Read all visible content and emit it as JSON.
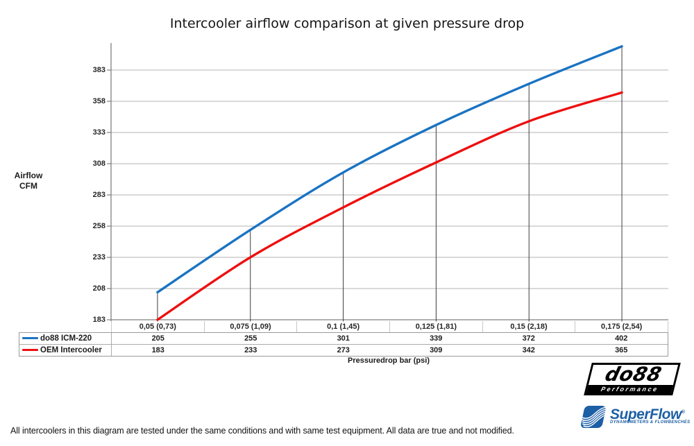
{
  "title": "Intercooler airflow comparison at given pressure drop",
  "y_axis_title": {
    "line1": "Airflow",
    "line2": "CFM"
  },
  "x_axis_title": "Pressuredrop bar (psi)",
  "chart_data": {
    "type": "line",
    "title": "Intercooler airflow comparison at given pressure drop",
    "categories": [
      "0,05 (0,73)",
      "0,075 (1,09)",
      "0,1 (1,45)",
      "0,125 (1,81)",
      "0,15 (2,18)",
      "0,175 (2,54)"
    ],
    "series": [
      {
        "name": "do88 ICM-220",
        "color": "#1a73c2",
        "values": [
          205,
          255,
          301,
          339,
          372,
          402
        ]
      },
      {
        "name": "OEM Intercooler",
        "color": "#ee0f0f",
        "values": [
          183,
          233,
          273,
          309,
          342,
          365
        ]
      }
    ],
    "xlabel": "Pressuredrop bar (psi)",
    "ylabel": "Airflow CFM",
    "yticks": [
      183,
      208,
      233,
      258,
      283,
      308,
      333,
      358,
      383
    ],
    "ylim": [
      183,
      408
    ],
    "grid": "horizontal",
    "smoothed_lines": true,
    "droplines_to_first_series": true,
    "legend_position": "data-table-left",
    "data_table_shown": true
  },
  "footer_note": "All intercoolers in this diagram are tested under the same conditions and with same test equipment. All data are true and not modified.",
  "logos": {
    "do88": {
      "text": "do88",
      "subtext": "Performance"
    },
    "superflow": {
      "text": "SuperFlow",
      "reg_mark": "®",
      "subtext": "DYNAMOMETERS & FLOWBENCHES"
    }
  },
  "colors": {
    "series1_blue": "#1a73c2",
    "series2_red": "#ee0f0f",
    "gridline": "#b3b3b3",
    "axis": "#7f7f7f",
    "dropline": "#3c3c3c",
    "table_border": "#9a9a9a",
    "logo_blue": "#1c5fa5"
  }
}
